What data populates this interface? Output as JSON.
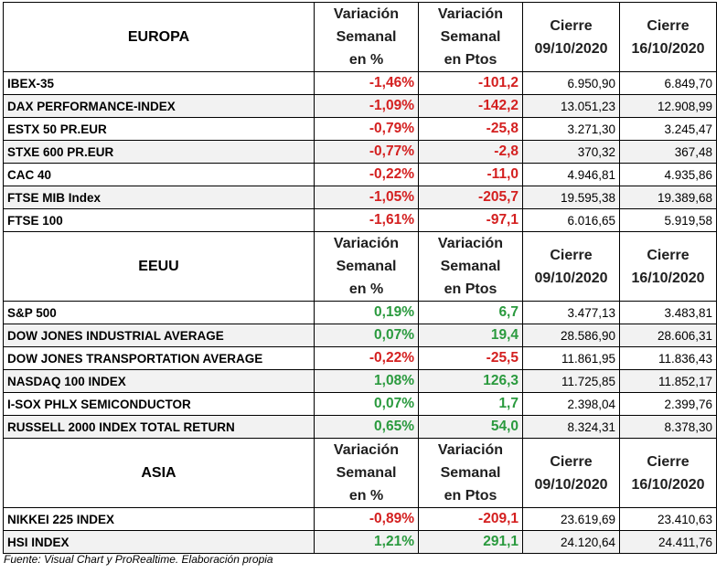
{
  "headers": {
    "pct": [
      "Variación",
      "Semanal",
      "en %"
    ],
    "pts": [
      "Variación",
      "Semanal",
      "en Ptos"
    ],
    "close1": [
      "Cierre",
      "09/10/2020"
    ],
    "close2": [
      "Cierre",
      "16/10/2020"
    ]
  },
  "colors": {
    "negative": "#d42020",
    "positive": "#2a9a3e",
    "shade": "#f2f2f2"
  },
  "sections": [
    {
      "region": "EUROPA",
      "rows": [
        {
          "name": "IBEX-35",
          "pct": "-1,46%",
          "pts": "-101,2",
          "close1": "6.950,90",
          "close2": "6.849,70",
          "dir": "neg"
        },
        {
          "name": "DAX PERFORMANCE-INDEX",
          "pct": "-1,09%",
          "pts": "-142,2",
          "close1": "13.051,23",
          "close2": "12.908,99",
          "dir": "neg"
        },
        {
          "name": "ESTX 50 PR.EUR",
          "pct": "-0,79%",
          "pts": "-25,8",
          "close1": "3.271,30",
          "close2": "3.245,47",
          "dir": "neg"
        },
        {
          "name": "STXE 600 PR.EUR",
          "pct": "-0,77%",
          "pts": "-2,8",
          "close1": "370,32",
          "close2": "367,48",
          "dir": "neg"
        },
        {
          "name": "CAC 40",
          "pct": "-0,22%",
          "pts": "-11,0",
          "close1": "4.946,81",
          "close2": "4.935,86",
          "dir": "neg"
        },
        {
          "name": "FTSE MIB Index",
          "pct": "-1,05%",
          "pts": "-205,7",
          "close1": "19.595,38",
          "close2": "19.389,68",
          "dir": "neg"
        },
        {
          "name": "FTSE 100",
          "pct": "-1,61%",
          "pts": "-97,1",
          "close1": "6.016,65",
          "close2": "5.919,58",
          "dir": "neg"
        }
      ]
    },
    {
      "region": "EEUU",
      "rows": [
        {
          "name": "S&P 500",
          "pct": "0,19%",
          "pts": "6,7",
          "close1": "3.477,13",
          "close2": "3.483,81",
          "dir": "pos"
        },
        {
          "name": "DOW JONES INDUSTRIAL AVERAGE",
          "pct": "0,07%",
          "pts": "19,4",
          "close1": "28.586,90",
          "close2": "28.606,31",
          "dir": "pos"
        },
        {
          "name": "DOW JONES TRANSPORTATION AVERAGE",
          "pct": "-0,22%",
          "pts": "-25,5",
          "close1": "11.861,95",
          "close2": "11.836,43",
          "dir": "neg"
        },
        {
          "name": "NASDAQ 100 INDEX",
          "pct": "1,08%",
          "pts": "126,3",
          "close1": "11.725,85",
          "close2": "11.852,17",
          "dir": "pos"
        },
        {
          "name": "I-SOX  PHLX SEMICONDUCTOR",
          "pct": "0,07%",
          "pts": "1,7",
          "close1": "2.398,04",
          "close2": "2.399,76",
          "dir": "pos"
        },
        {
          "name": "RUSSELL 2000 INDEX TOTAL RETURN",
          "pct": "0,65%",
          "pts": "54,0",
          "close1": "8.324,31",
          "close2": "8.378,30",
          "dir": "pos"
        }
      ]
    },
    {
      "region": "ASIA",
      "rows": [
        {
          "name": "NIKKEI 225 INDEX",
          "pct": "-0,89%",
          "pts": "-209,1",
          "close1": "23.619,69",
          "close2": "23.410,63",
          "dir": "neg"
        },
        {
          "name": "HSI INDEX",
          "pct": "1,21%",
          "pts": "291,1",
          "close1": "24.120,64",
          "close2": "24.411,76",
          "dir": "pos"
        }
      ]
    }
  ],
  "source": "Fuente: Visual Chart y ProRealtime. Elaboración propia"
}
